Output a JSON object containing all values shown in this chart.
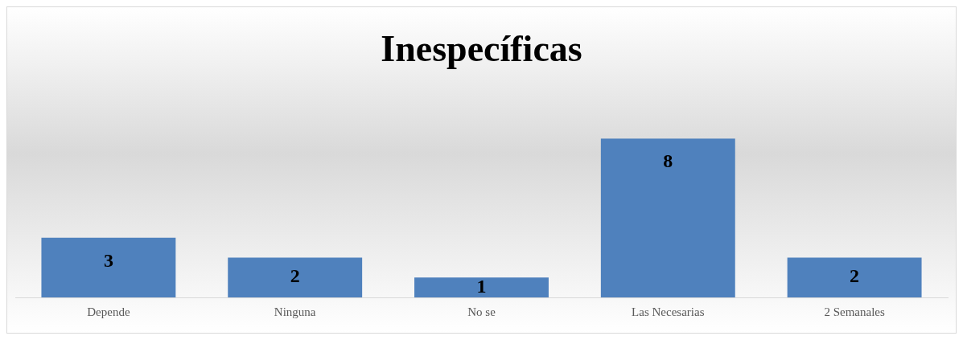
{
  "chart_data": {
    "type": "bar",
    "title": "Inespecíficas",
    "categories": [
      "Depende",
      "Ninguna",
      "No se",
      "Las Necesarias",
      "2 Semanales"
    ],
    "values": [
      3,
      2,
      1,
      8,
      2
    ],
    "color": "#4f81bd",
    "data_labels": true,
    "legend": false
  }
}
